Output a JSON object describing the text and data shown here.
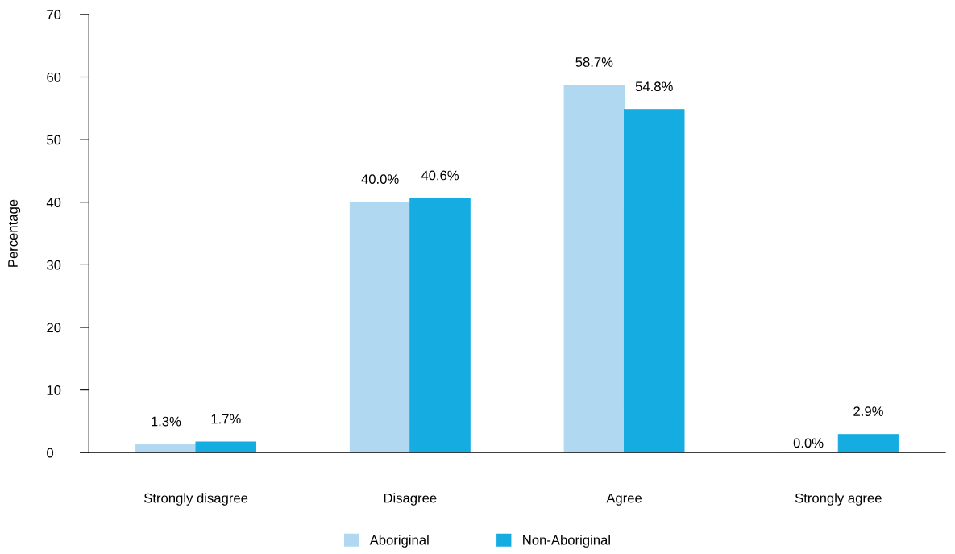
{
  "chart_data": {
    "type": "bar",
    "ylabel": "Percentage",
    "categories": [
      "Strongly disagree",
      "Disagree",
      "Agree",
      "Strongly agree"
    ],
    "series": [
      {
        "name": "Aboriginal",
        "color": "#b0d8f0",
        "values": [
          1.3,
          40.0,
          58.7,
          0.0
        ],
        "value_labels": [
          "1.3%",
          "40.0%",
          "58.7%",
          "0.0%"
        ]
      },
      {
        "name": "Non-Aboriginal",
        "color": "#15ace2",
        "values": [
          1.7,
          40.6,
          54.8,
          2.9
        ],
        "value_labels": [
          "1.7%",
          "40.6%",
          "54.8%",
          "2.9%"
        ]
      }
    ],
    "ylim": [
      0,
      70
    ],
    "yticks": [
      0,
      10,
      20,
      30,
      40,
      50,
      60,
      70
    ],
    "grid": false,
    "legend": "bottom"
  }
}
